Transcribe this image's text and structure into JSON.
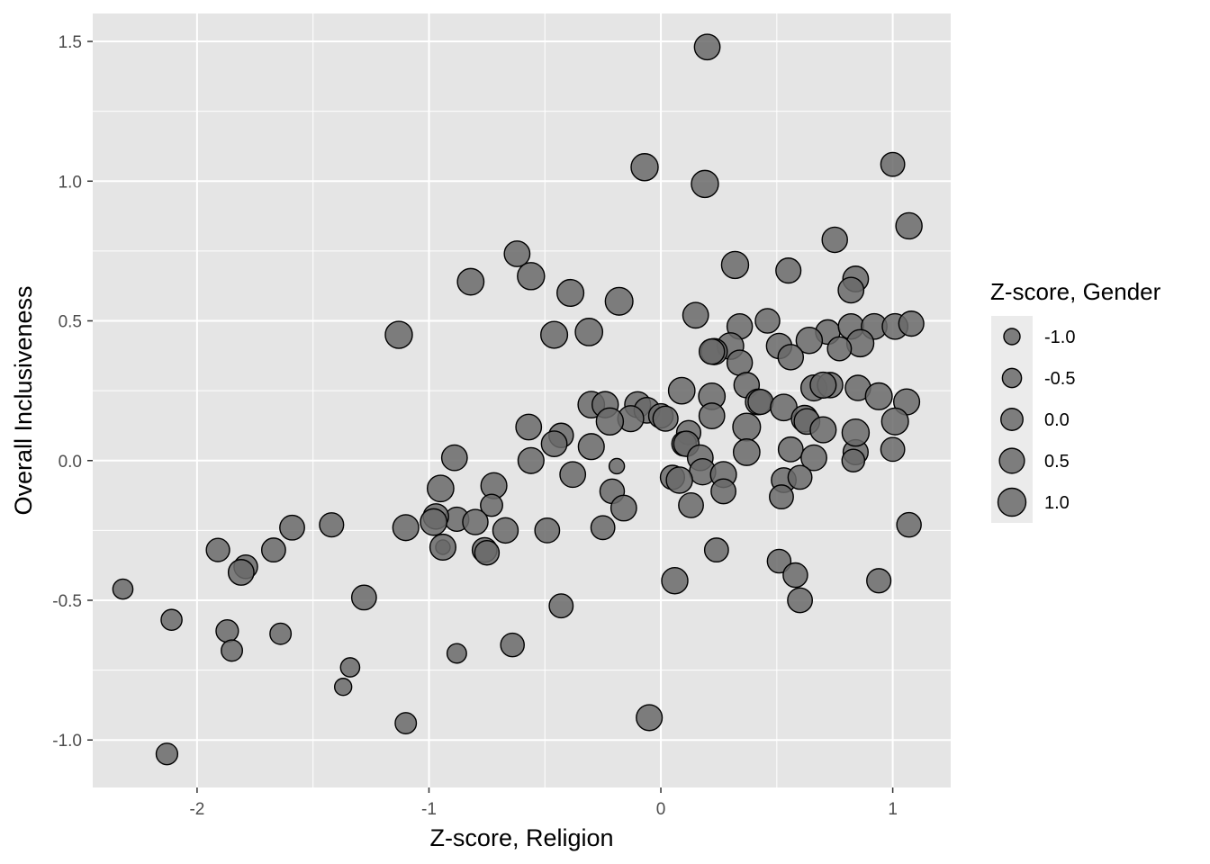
{
  "chart_data": {
    "type": "scatter",
    "xlabel": "Z-score, Religion",
    "ylabel": "Overall Inclusiveness",
    "xlim": [
      -2.45,
      1.25
    ],
    "ylim": [
      -1.17,
      1.6
    ],
    "x_ticks": [
      -2,
      -1,
      0,
      1
    ],
    "x_tick_labels": [
      "-2",
      "-1",
      "0",
      "1"
    ],
    "y_ticks": [
      -1.0,
      -0.5,
      0.0,
      0.5,
      1.0,
      1.5
    ],
    "y_tick_labels": [
      "-1.0",
      "-0.5",
      "0.0",
      "0.5",
      "1.0",
      "1.5"
    ],
    "grid": true,
    "size_legend": {
      "title": "Z-score, Gender",
      "placement": "right",
      "values": [
        -1.0,
        -0.5,
        0.0,
        0.5,
        1.0
      ],
      "labels": [
        "-1.0",
        "-0.5",
        "0.0",
        "0.5",
        "1.0"
      ]
    },
    "colors": {
      "panel": "#e5e5e5",
      "grid": "#ffffff",
      "point_fill": "#6a6a6a",
      "point_stroke": "#000000",
      "text": "#4d4d4d"
    },
    "points": [
      {
        "x": 0.2,
        "y": 1.48,
        "size": 0.6
      },
      {
        "x": -0.07,
        "y": 1.05,
        "size": 0.85
      },
      {
        "x": 0.19,
        "y": 0.99,
        "size": 0.85
      },
      {
        "x": 1.0,
        "y": 1.06,
        "size": 0.3
      },
      {
        "x": 1.07,
        "y": 0.84,
        "size": 0.7
      },
      {
        "x": 0.75,
        "y": 0.79,
        "size": 0.55
      },
      {
        "x": -0.62,
        "y": 0.74,
        "size": 0.6
      },
      {
        "x": -0.56,
        "y": 0.66,
        "size": 0.85
      },
      {
        "x": -0.82,
        "y": 0.64,
        "size": 0.75
      },
      {
        "x": 0.32,
        "y": 0.7,
        "size": 0.85
      },
      {
        "x": 0.55,
        "y": 0.68,
        "size": 0.5
      },
      {
        "x": 0.84,
        "y": 0.65,
        "size": 0.6
      },
      {
        "x": 0.82,
        "y": 0.61,
        "size": 0.6
      },
      {
        "x": -0.39,
        "y": 0.6,
        "size": 0.8
      },
      {
        "x": -0.18,
        "y": 0.57,
        "size": 0.95
      },
      {
        "x": 0.15,
        "y": 0.52,
        "size": 0.6
      },
      {
        "x": 0.46,
        "y": 0.5,
        "size": 0.4
      },
      {
        "x": 0.34,
        "y": 0.48,
        "size": 0.55
      },
      {
        "x": -1.13,
        "y": 0.45,
        "size": 0.85
      },
      {
        "x": -0.46,
        "y": 0.45,
        "size": 0.8
      },
      {
        "x": -0.31,
        "y": 0.46,
        "size": 0.9
      },
      {
        "x": 0.72,
        "y": 0.46,
        "size": 0.4
      },
      {
        "x": 0.82,
        "y": 0.48,
        "size": 0.55
      },
      {
        "x": 0.92,
        "y": 0.48,
        "size": 0.6
      },
      {
        "x": 1.01,
        "y": 0.48,
        "size": 0.6
      },
      {
        "x": 1.08,
        "y": 0.49,
        "size": 0.5
      },
      {
        "x": 0.64,
        "y": 0.43,
        "size": 0.7
      },
      {
        "x": 0.86,
        "y": 0.42,
        "size": 0.85
      },
      {
        "x": 0.51,
        "y": 0.41,
        "size": 0.55
      },
      {
        "x": 0.77,
        "y": 0.4,
        "size": 0.3
      },
      {
        "x": 0.3,
        "y": 0.41,
        "size": 0.75
      },
      {
        "x": 0.23,
        "y": 0.39,
        "size": 0.7
      },
      {
        "x": 0.22,
        "y": 0.39,
        "size": 0.55
      },
      {
        "x": 0.56,
        "y": 0.37,
        "size": 0.55
      },
      {
        "x": 0.34,
        "y": 0.35,
        "size": 0.55
      },
      {
        "x": 0.37,
        "y": 0.27,
        "size": 0.55
      },
      {
        "x": 0.66,
        "y": 0.26,
        "size": 0.65
      },
      {
        "x": 0.73,
        "y": 0.27,
        "size": 0.55
      },
      {
        "x": 0.7,
        "y": 0.27,
        "size": 0.65
      },
      {
        "x": 0.85,
        "y": 0.26,
        "size": 0.55
      },
      {
        "x": 0.94,
        "y": 0.23,
        "size": 0.8
      },
      {
        "x": 1.06,
        "y": 0.21,
        "size": 0.65
      },
      {
        "x": 0.09,
        "y": 0.25,
        "size": 0.75
      },
      {
        "x": 0.22,
        "y": 0.23,
        "size": 0.75
      },
      {
        "x": 0.42,
        "y": 0.21,
        "size": 0.6
      },
      {
        "x": 0.43,
        "y": 0.21,
        "size": 0.5
      },
      {
        "x": 0.53,
        "y": 0.19,
        "size": 0.75
      },
      {
        "x": -0.3,
        "y": 0.2,
        "size": 0.75
      },
      {
        "x": -0.24,
        "y": 0.2,
        "size": 0.7
      },
      {
        "x": -0.1,
        "y": 0.2,
        "size": 0.65
      },
      {
        "x": -0.06,
        "y": 0.18,
        "size": 0.6
      },
      {
        "x": -0.13,
        "y": 0.15,
        "size": 0.65
      },
      {
        "x": -0.22,
        "y": 0.14,
        "size": 0.85
      },
      {
        "x": 0.0,
        "y": 0.16,
        "size": 0.4
      },
      {
        "x": 0.02,
        "y": 0.15,
        "size": 0.5
      },
      {
        "x": 0.22,
        "y": 0.16,
        "size": 0.6
      },
      {
        "x": 0.62,
        "y": 0.15,
        "size": 0.75
      },
      {
        "x": 0.63,
        "y": 0.14,
        "size": 0.6
      },
      {
        "x": 0.7,
        "y": 0.11,
        "size": 0.65
      },
      {
        "x": 1.01,
        "y": 0.14,
        "size": 0.8
      },
      {
        "x": -0.57,
        "y": 0.12,
        "size": 0.6
      },
      {
        "x": -0.43,
        "y": 0.09,
        "size": 0.4
      },
      {
        "x": -0.46,
        "y": 0.06,
        "size": 0.6
      },
      {
        "x": -0.3,
        "y": 0.05,
        "size": 0.65
      },
      {
        "x": 0.12,
        "y": 0.1,
        "size": 0.35
      },
      {
        "x": 0.1,
        "y": 0.06,
        "size": 0.4
      },
      {
        "x": 0.11,
        "y": 0.06,
        "size": 0.55
      },
      {
        "x": 0.37,
        "y": 0.12,
        "size": 0.95
      },
      {
        "x": 0.37,
        "y": 0.03,
        "size": 0.75
      },
      {
        "x": 0.17,
        "y": 0.01,
        "size": 0.6
      },
      {
        "x": 0.56,
        "y": 0.04,
        "size": 0.45
      },
      {
        "x": 0.66,
        "y": 0.01,
        "size": 0.6
      },
      {
        "x": 0.84,
        "y": 0.03,
        "size": 0.5
      },
      {
        "x": 0.84,
        "y": 0.1,
        "size": 0.85
      },
      {
        "x": 0.83,
        "y": 0.0,
        "size": 0.1
      },
      {
        "x": 1.0,
        "y": 0.04,
        "size": 0.3
      },
      {
        "x": -0.89,
        "y": 0.01,
        "size": 0.6
      },
      {
        "x": -0.56,
        "y": 0.0,
        "size": 0.65
      },
      {
        "x": -0.19,
        "y": -0.02,
        "size": -1.15
      },
      {
        "x": 0.18,
        "y": -0.04,
        "size": 0.7
      },
      {
        "x": 0.27,
        "y": -0.05,
        "size": 0.65
      },
      {
        "x": 0.05,
        "y": -0.06,
        "size": 0.35
      },
      {
        "x": 0.08,
        "y": -0.07,
        "size": 0.7
      },
      {
        "x": 0.53,
        "y": -0.07,
        "size": 0.45
      },
      {
        "x": 0.6,
        "y": -0.06,
        "size": 0.3
      },
      {
        "x": -0.38,
        "y": -0.05,
        "size": 0.6
      },
      {
        "x": -0.72,
        "y": -0.09,
        "size": 0.65
      },
      {
        "x": -0.95,
        "y": -0.1,
        "size": 0.75
      },
      {
        "x": -0.21,
        "y": -0.11,
        "size": 0.4
      },
      {
        "x": 0.27,
        "y": -0.11,
        "size": 0.45
      },
      {
        "x": 0.52,
        "y": -0.13,
        "size": 0.3
      },
      {
        "x": -0.73,
        "y": -0.16,
        "size": 0.0
      },
      {
        "x": 0.13,
        "y": -0.16,
        "size": 0.45
      },
      {
        "x": -0.16,
        "y": -0.17,
        "size": 0.6
      },
      {
        "x": -0.88,
        "y": -0.21,
        "size": 0.35
      },
      {
        "x": -0.8,
        "y": -0.22,
        "size": 0.55
      },
      {
        "x": -0.97,
        "y": -0.2,
        "size": 0.55
      },
      {
        "x": -0.98,
        "y": -0.22,
        "size": 0.75
      },
      {
        "x": -1.1,
        "y": -0.24,
        "size": 0.65
      },
      {
        "x": -1.42,
        "y": -0.23,
        "size": 0.35
      },
      {
        "x": -1.59,
        "y": -0.24,
        "size": 0.45
      },
      {
        "x": -0.67,
        "y": -0.25,
        "size": 0.55
      },
      {
        "x": -0.49,
        "y": -0.25,
        "size": 0.45
      },
      {
        "x": -0.25,
        "y": -0.24,
        "size": 0.3
      },
      {
        "x": 1.07,
        "y": -0.23,
        "size": 0.4
      },
      {
        "x": -0.94,
        "y": -0.31,
        "size": -1.3
      },
      {
        "x": -0.94,
        "y": -0.31,
        "size": 0.65
      },
      {
        "x": -0.76,
        "y": -0.32,
        "size": 0.45
      },
      {
        "x": -0.75,
        "y": -0.33,
        "size": 0.4
      },
      {
        "x": 0.24,
        "y": -0.32,
        "size": 0.3
      },
      {
        "x": -1.91,
        "y": -0.32,
        "size": 0.2
      },
      {
        "x": -1.67,
        "y": -0.32,
        "size": 0.3
      },
      {
        "x": -1.79,
        "y": -0.38,
        "size": 0.25
      },
      {
        "x": -1.81,
        "y": -0.4,
        "size": 0.6
      },
      {
        "x": 0.51,
        "y": -0.36,
        "size": 0.25
      },
      {
        "x": 0.58,
        "y": -0.41,
        "size": 0.4
      },
      {
        "x": 0.06,
        "y": -0.43,
        "size": 0.7
      },
      {
        "x": 0.94,
        "y": -0.43,
        "size": 0.35
      },
      {
        "x": -2.32,
        "y": -0.46,
        "size": -0.35
      },
      {
        "x": -1.28,
        "y": -0.49,
        "size": 0.45
      },
      {
        "x": 0.6,
        "y": -0.5,
        "size": 0.45
      },
      {
        "x": -0.43,
        "y": -0.52,
        "size": 0.3
      },
      {
        "x": -2.11,
        "y": -0.57,
        "size": -0.2
      },
      {
        "x": -1.87,
        "y": -0.61,
        "size": 0.05
      },
      {
        "x": -1.64,
        "y": -0.62,
        "size": -0.15
      },
      {
        "x": -0.64,
        "y": -0.66,
        "size": 0.25
      },
      {
        "x": -1.85,
        "y": -0.68,
        "size": -0.15
      },
      {
        "x": -0.88,
        "y": -0.69,
        "size": -0.45
      },
      {
        "x": -1.34,
        "y": -0.74,
        "size": -0.5
      },
      {
        "x": -1.37,
        "y": -0.81,
        "size": -0.85
      },
      {
        "x": -1.1,
        "y": -0.94,
        "size": -0.15
      },
      {
        "x": -0.05,
        "y": -0.92,
        "size": 0.65
      },
      {
        "x": -2.13,
        "y": -1.05,
        "size": -0.1
      }
    ]
  }
}
